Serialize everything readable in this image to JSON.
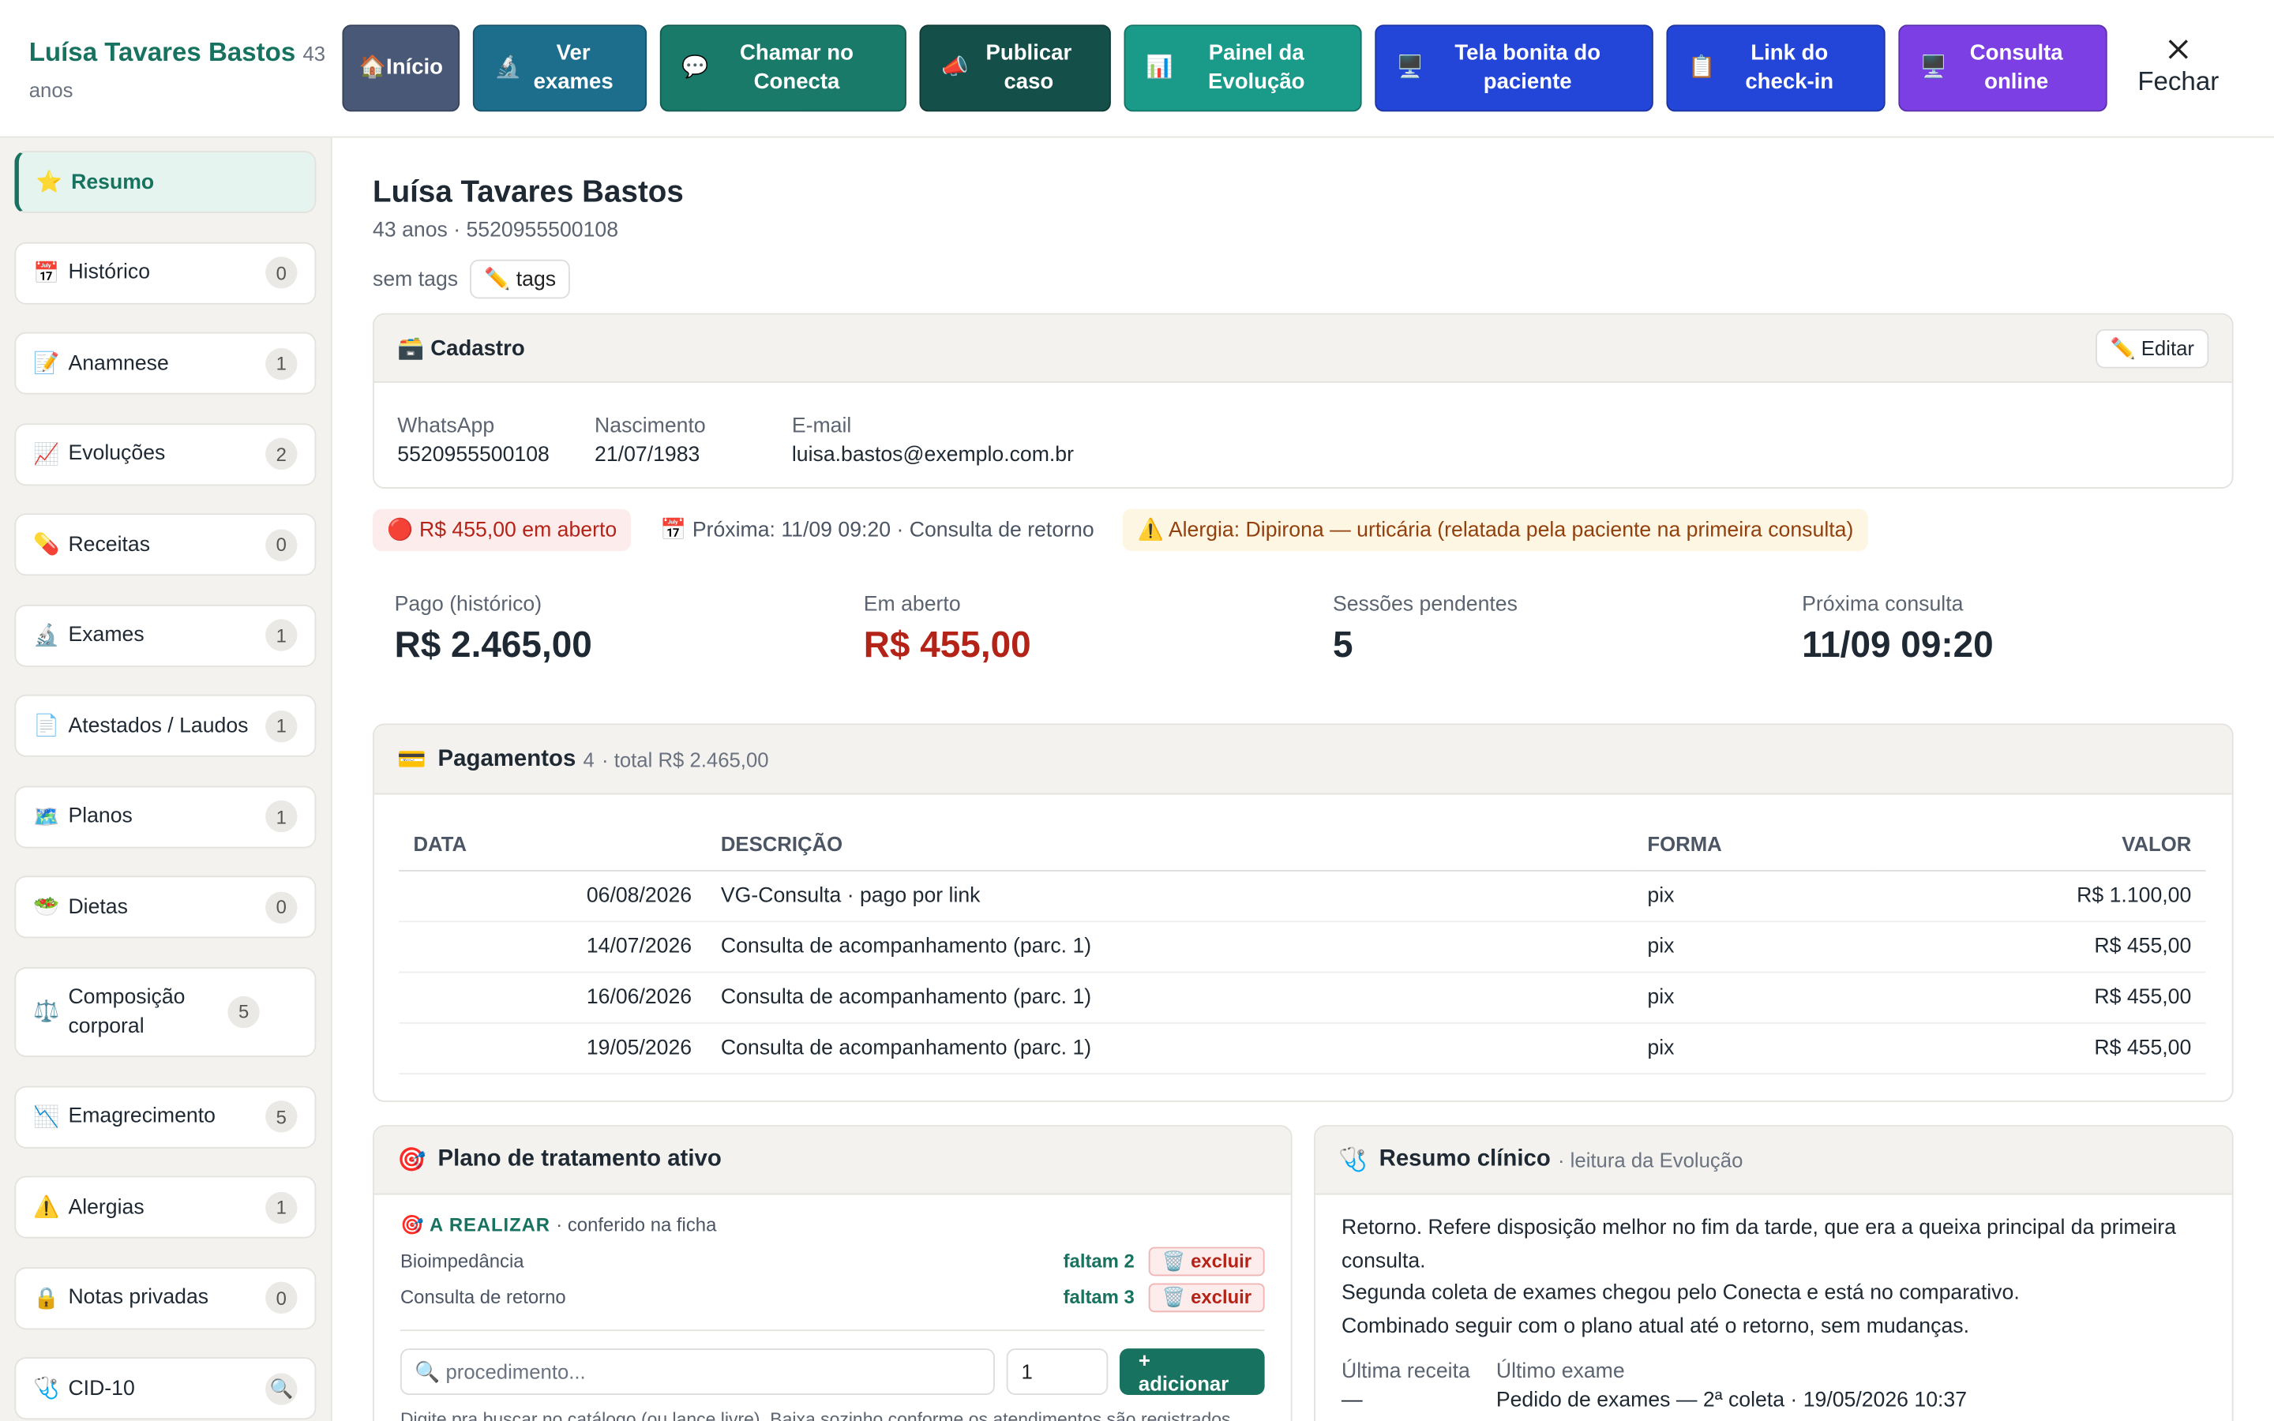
{
  "header": {
    "name": "Luísa Tavares Bastos",
    "age": "43 anos",
    "close": "Fechar",
    "buttons": [
      {
        "icon": "🏠",
        "label": "Início",
        "color": "#4a5878"
      },
      {
        "icon": "🔬",
        "label": "Ver exames",
        "color": "#1c6e8c"
      },
      {
        "icon": "💬",
        "label": "Chamar no Conecta",
        "color": "#1a7a6a"
      },
      {
        "icon": "📣",
        "label": "Publicar caso",
        "color": "#144f4a"
      },
      {
        "icon": "📊",
        "label": "Painel da Evolução",
        "color": "#1a9a88"
      },
      {
        "icon": "🖥️",
        "label": "Tela bonita do paciente",
        "color": "#2446d8"
      },
      {
        "icon": "📋",
        "label": "Link do check-in",
        "color": "#2446d8"
      },
      {
        "icon": "🖥️",
        "label": "Consulta online",
        "color": "#7b3fe4"
      }
    ]
  },
  "sidebar": {
    "items": [
      {
        "icon": "⭐",
        "label": "Resumo"
      },
      {
        "icon": "📅",
        "label": "Histórico",
        "count": "0"
      },
      {
        "icon": "📝",
        "label": "Anamnese",
        "count": "1"
      },
      {
        "icon": "📈",
        "label": "Evoluções",
        "count": "2"
      },
      {
        "icon": "💊",
        "label": "Receitas",
        "count": "0"
      },
      {
        "icon": "🔬",
        "label": "Exames",
        "count": "1"
      },
      {
        "icon": "📄",
        "label": "Atestados / Laudos",
        "count": "1"
      },
      {
        "icon": "🗺️",
        "label": "Planos",
        "count": "1"
      },
      {
        "icon": "🥗",
        "label": "Dietas",
        "count": "0"
      },
      {
        "icon": "⚖️",
        "label": "Composição corporal",
        "count": "5"
      },
      {
        "icon": "📉",
        "label": "Emagrecimento",
        "count": "5"
      },
      {
        "icon": "⚠️",
        "label": "Alergias",
        "count": "1"
      },
      {
        "icon": "🔒",
        "label": "Notas privadas",
        "count": "0"
      },
      {
        "icon": "🩺",
        "label": "CID-10",
        "count": "🔍"
      }
    ]
  },
  "main": {
    "title": "Luísa Tavares Bastos",
    "subtitle": "43 anos · 5520955500108",
    "tags_label": "sem tags",
    "tags_button": "✏️ tags",
    "cadastro": {
      "title": "🗃️ Cadastro",
      "edit": "✏️ Editar",
      "fields": [
        {
          "label": "WhatsApp",
          "value": "5520955500108"
        },
        {
          "label": "Nascimento",
          "value": "21/07/1983"
        },
        {
          "label": "E-mail",
          "value": "luisa.bastos@exemplo.com.br"
        }
      ]
    },
    "alerts": [
      "🔴 R$ 455,00 em aberto",
      "📅 Próxima: 11/09 09:20 · Consulta de retorno",
      "⚠️ Alergia: Dipirona — urticária (relatada pela paciente na primeira consulta)"
    ],
    "stats": [
      {
        "label": "Pago (histórico)",
        "value": "R$ 2.465,00"
      },
      {
        "label": "Em aberto",
        "value": "R$ 455,00"
      },
      {
        "label": "Sessões pendentes",
        "value": "5"
      },
      {
        "label": "Próxima consulta",
        "value": "11/09 09:20"
      }
    ],
    "payments": {
      "icon": "💳",
      "title": "Pagamentos",
      "count": "4",
      "total": "· total R$ 2.465,00",
      "columns": [
        "DATA",
        "DESCRIÇÃO",
        "FORMA",
        "VALOR"
      ],
      "rows": [
        [
          "06/08/2026",
          "VG-Consulta · pago por link",
          "pix",
          "R$ 1.100,00"
        ],
        [
          "14/07/2026",
          "Consulta de acompanhamento (parc. 1)",
          "pix",
          "R$ 455,00"
        ],
        [
          "16/06/2026",
          "Consulta de acompanhamento (parc. 1)",
          "pix",
          "R$ 455,00"
        ],
        [
          "19/05/2026",
          "Consulta de acompanhamento (parc. 1)",
          "pix",
          "R$ 455,00"
        ]
      ]
    },
    "plan": {
      "icon": "🎯",
      "title": "Plano de tratamento ativo",
      "status_icon": "🎯",
      "status": "A REALIZAR",
      "note": "· conferido na ficha",
      "items": [
        {
          "name": "Bioimpedância",
          "remaining": "faltam 2",
          "action": "🗑️ excluir"
        },
        {
          "name": "Consulta de retorno",
          "remaining": "faltam 3",
          "action": "🗑️ excluir"
        }
      ],
      "input": "🔍 procedimento...",
      "qty": "1",
      "add": "+ adicionar",
      "hint": "Digite pra buscar no catálogo (ou lance livre). Baixa sozinho conforme os atendimentos são registrados."
    },
    "summary": {
      "icon": "🩺",
      "title": "Resumo clínico",
      "subtitle": "· leitura da Evolução",
      "paragraphs": [
        "Retorno. Refere disposição melhor no fim da tarde, que era a queixa principal da primeira consulta.",
        "Segunda coleta de exames chegou pelo Conecta e está no comparativo.",
        "Combinado seguir com o plano atual até o retorno, sem mudanças."
      ],
      "meta": [
        {
          "label": "Última receita",
          "value": "—"
        },
        {
          "label": "Último exame",
          "value": "Pedido de exames — 2ª coleta · 19/05/2026 10:37"
        }
      ]
    }
  }
}
